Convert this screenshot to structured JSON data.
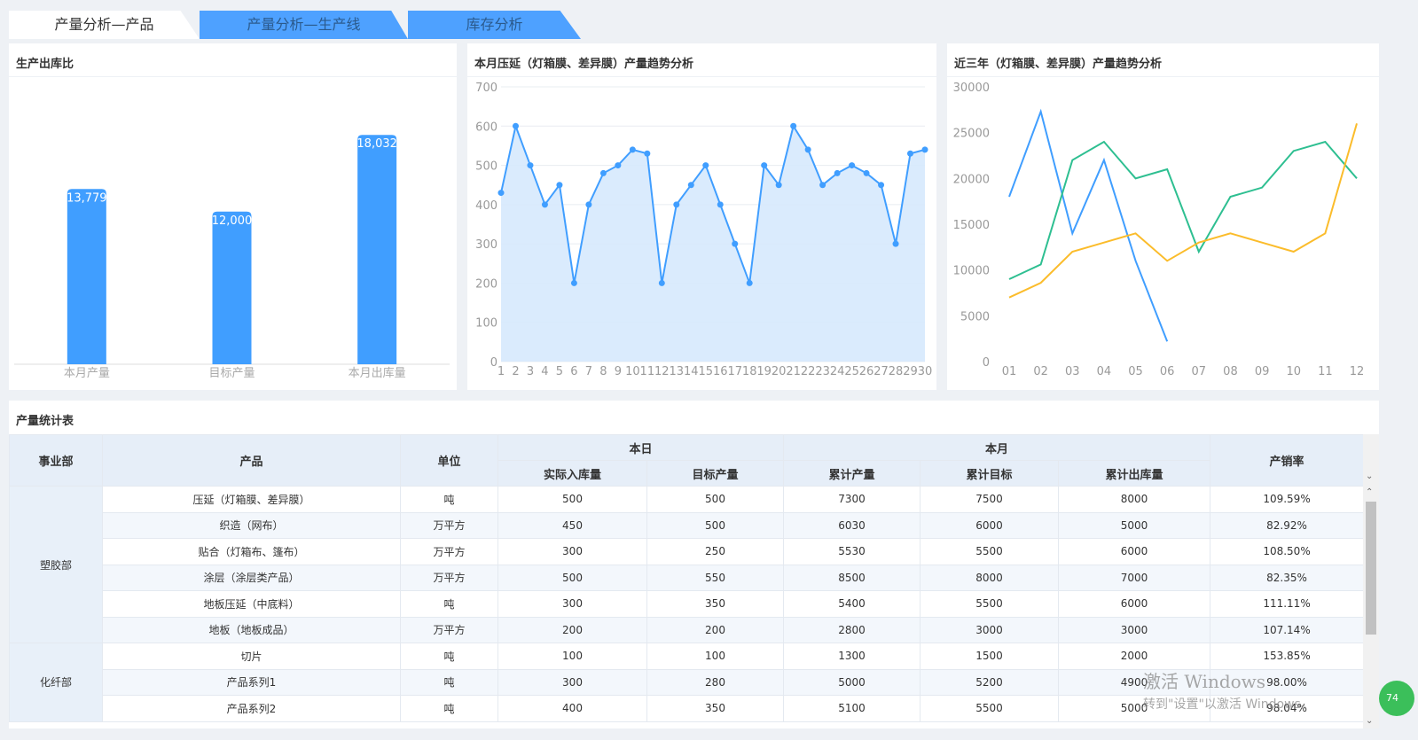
{
  "tabs": [
    {
      "label": "产量分析—产品",
      "active": true
    },
    {
      "label": "产量分析—生产线",
      "active": false
    },
    {
      "label": "库存分析",
      "active": false
    }
  ],
  "colors": {
    "accent": "#409eff",
    "green": "#2ebf91",
    "orange": "#fbbc2b",
    "area": "#d6e9fd"
  },
  "panels": {
    "bar_title": "生产出库比",
    "line_title": "本月压延（灯箱膜、差异膜）产量趋势分析",
    "multi_title": "近三年（灯箱膜、差异膜）产量趋势分析",
    "table_title": "产量统计表"
  },
  "chart_data": [
    {
      "type": "bar",
      "title": "生产出库比",
      "categories": [
        "本月产量",
        "目标产量",
        "本月出库量"
      ],
      "values": [
        13779,
        12000,
        18032
      ],
      "value_labels": [
        "13,779",
        "12,000",
        "18,032"
      ],
      "ylim": [
        0,
        20000
      ],
      "grid": false
    },
    {
      "type": "area",
      "title": "本月压延（灯箱膜、差异膜）产量趋势分析",
      "x": [
        1,
        2,
        3,
        4,
        5,
        6,
        7,
        8,
        9,
        10,
        11,
        12,
        13,
        14,
        15,
        16,
        17,
        18,
        19,
        20,
        21,
        22,
        23,
        24,
        25,
        26,
        27,
        28,
        29,
        30
      ],
      "values": [
        430,
        600,
        500,
        400,
        450,
        200,
        400,
        480,
        500,
        540,
        530,
        200,
        400,
        450,
        500,
        400,
        300,
        200,
        500,
        450,
        600,
        540,
        450,
        480,
        500,
        480,
        450,
        300,
        530,
        540
      ],
      "ylim": [
        0,
        700
      ],
      "yticks": [
        0,
        100,
        200,
        300,
        400,
        500,
        600,
        700
      ],
      "grid": true
    },
    {
      "type": "line",
      "title": "近三年（灯箱膜、差异膜）产量趋势分析",
      "categories": [
        "01",
        "02",
        "03",
        "04",
        "05",
        "06",
        "07",
        "08",
        "09",
        "10",
        "11",
        "12"
      ],
      "ylim": [
        0,
        30000
      ],
      "yticks": [
        0,
        5000,
        10000,
        15000,
        20000,
        25000,
        30000
      ],
      "series": [
        {
          "color": "#409eff",
          "values": [
            18000,
            27300,
            14000,
            22000,
            11000,
            2200,
            null,
            null,
            null,
            null,
            null,
            null
          ]
        },
        {
          "color": "#2ebf91",
          "values": [
            9000,
            10600,
            22000,
            24000,
            20000,
            21000,
            12000,
            18000,
            19000,
            23000,
            24000,
            20000
          ]
        },
        {
          "color": "#fbbc2b",
          "values": [
            7000,
            8600,
            12000,
            13000,
            14000,
            11000,
            13000,
            14000,
            13000,
            12000,
            14000,
            26000
          ]
        }
      ],
      "grid": false
    }
  ],
  "table": {
    "header": {
      "dept": "事业部",
      "product": "产品",
      "unit": "单位",
      "today": "本日",
      "month": "本月",
      "rate": "产销率",
      "actual_in": "实际入库量",
      "target": "目标产量",
      "cum_output": "累计产量",
      "cum_target": "累计目标",
      "cum_out": "累计出库量"
    },
    "groups": [
      {
        "dept": "塑胶部",
        "rows": [
          [
            "压延（灯箱膜、差异膜）",
            "吨",
            "500",
            "500",
            "7300",
            "7500",
            "8000",
            "109.59%"
          ],
          [
            "织造（网布）",
            "万平方",
            "450",
            "500",
            "6030",
            "6000",
            "5000",
            "82.92%"
          ],
          [
            "贴合（灯箱布、篷布）",
            "万平方",
            "300",
            "250",
            "5530",
            "5500",
            "6000",
            "108.50%"
          ],
          [
            "涂层（涂层类产品）",
            "万平方",
            "500",
            "550",
            "8500",
            "8000",
            "7000",
            "82.35%"
          ],
          [
            "地板压延（中底料）",
            "吨",
            "300",
            "350",
            "5400",
            "5500",
            "6000",
            "111.11%"
          ],
          [
            "地板（地板成品）",
            "万平方",
            "200",
            "200",
            "2800",
            "3000",
            "3000",
            "107.14%"
          ]
        ]
      },
      {
        "dept": "化纤部",
        "rows": [
          [
            "切片",
            "吨",
            "100",
            "100",
            "1300",
            "1500",
            "2000",
            "153.85%"
          ],
          [
            "产品系列1",
            "吨",
            "300",
            "280",
            "5000",
            "5200",
            "4900",
            "98.00%"
          ],
          [
            "产品系列2",
            "吨",
            "400",
            "350",
            "5100",
            "5500",
            "5000",
            "98.04%"
          ]
        ]
      }
    ]
  },
  "watermark": {
    "line1": "激活 Windows",
    "line2": "转到\"设置\"以激活 Windows。"
  },
  "green_ball": "74"
}
